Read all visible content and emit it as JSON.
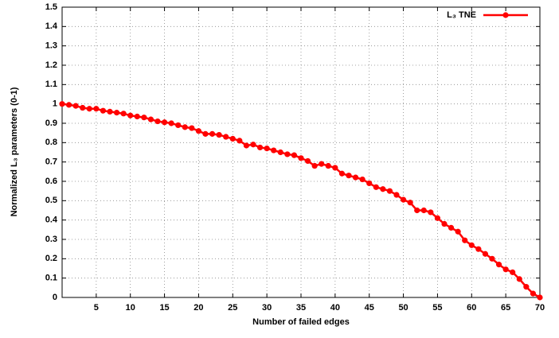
{
  "chart_data": {
    "type": "line",
    "xlabel": "Number of failed edges",
    "ylabel": "Normalized L₃ parameters (0-1)",
    "x": [
      0,
      1,
      2,
      3,
      4,
      5,
      6,
      7,
      8,
      9,
      10,
      11,
      12,
      13,
      14,
      15,
      16,
      17,
      18,
      19,
      20,
      21,
      22,
      23,
      24,
      25,
      26,
      27,
      28,
      29,
      30,
      31,
      32,
      33,
      34,
      35,
      36,
      37,
      38,
      39,
      40,
      41,
      42,
      43,
      44,
      45,
      46,
      47,
      48,
      49,
      50,
      51,
      52,
      53,
      54,
      55,
      56,
      57,
      58,
      59,
      60,
      61,
      62,
      63,
      64,
      65,
      66,
      67,
      68,
      69,
      70
    ],
    "series": [
      {
        "name": "L₃ TNE",
        "color": "#ff0000",
        "values": [
          1.0,
          0.995,
          0.99,
          0.98,
          0.975,
          0.975,
          0.965,
          0.96,
          0.955,
          0.95,
          0.94,
          0.935,
          0.93,
          0.92,
          0.91,
          0.905,
          0.9,
          0.89,
          0.88,
          0.875,
          0.86,
          0.845,
          0.845,
          0.84,
          0.83,
          0.82,
          0.81,
          0.785,
          0.79,
          0.775,
          0.77,
          0.76,
          0.75,
          0.74,
          0.735,
          0.72,
          0.705,
          0.68,
          0.69,
          0.68,
          0.67,
          0.64,
          0.63,
          0.62,
          0.61,
          0.59,
          0.57,
          0.56,
          0.55,
          0.53,
          0.505,
          0.49,
          0.45,
          0.45,
          0.44,
          0.41,
          0.38,
          0.36,
          0.34,
          0.295,
          0.27,
          0.25,
          0.225,
          0.2,
          0.17,
          0.145,
          0.13,
          0.095,
          0.055,
          0.02,
          0
        ]
      }
    ],
    "xlim": [
      0,
      70
    ],
    "xticks": [
      5,
      10,
      15,
      20,
      25,
      30,
      35,
      40,
      45,
      50,
      55,
      60,
      65,
      70
    ],
    "ylim": [
      0,
      1.5
    ],
    "yticks": [
      0,
      0.1,
      0.2,
      0.3,
      0.4,
      0.5,
      0.6,
      0.7,
      0.8,
      0.9,
      1,
      1.1,
      1.2,
      1.3,
      1.4,
      1.5
    ],
    "grid": true,
    "legend": "upper right"
  }
}
